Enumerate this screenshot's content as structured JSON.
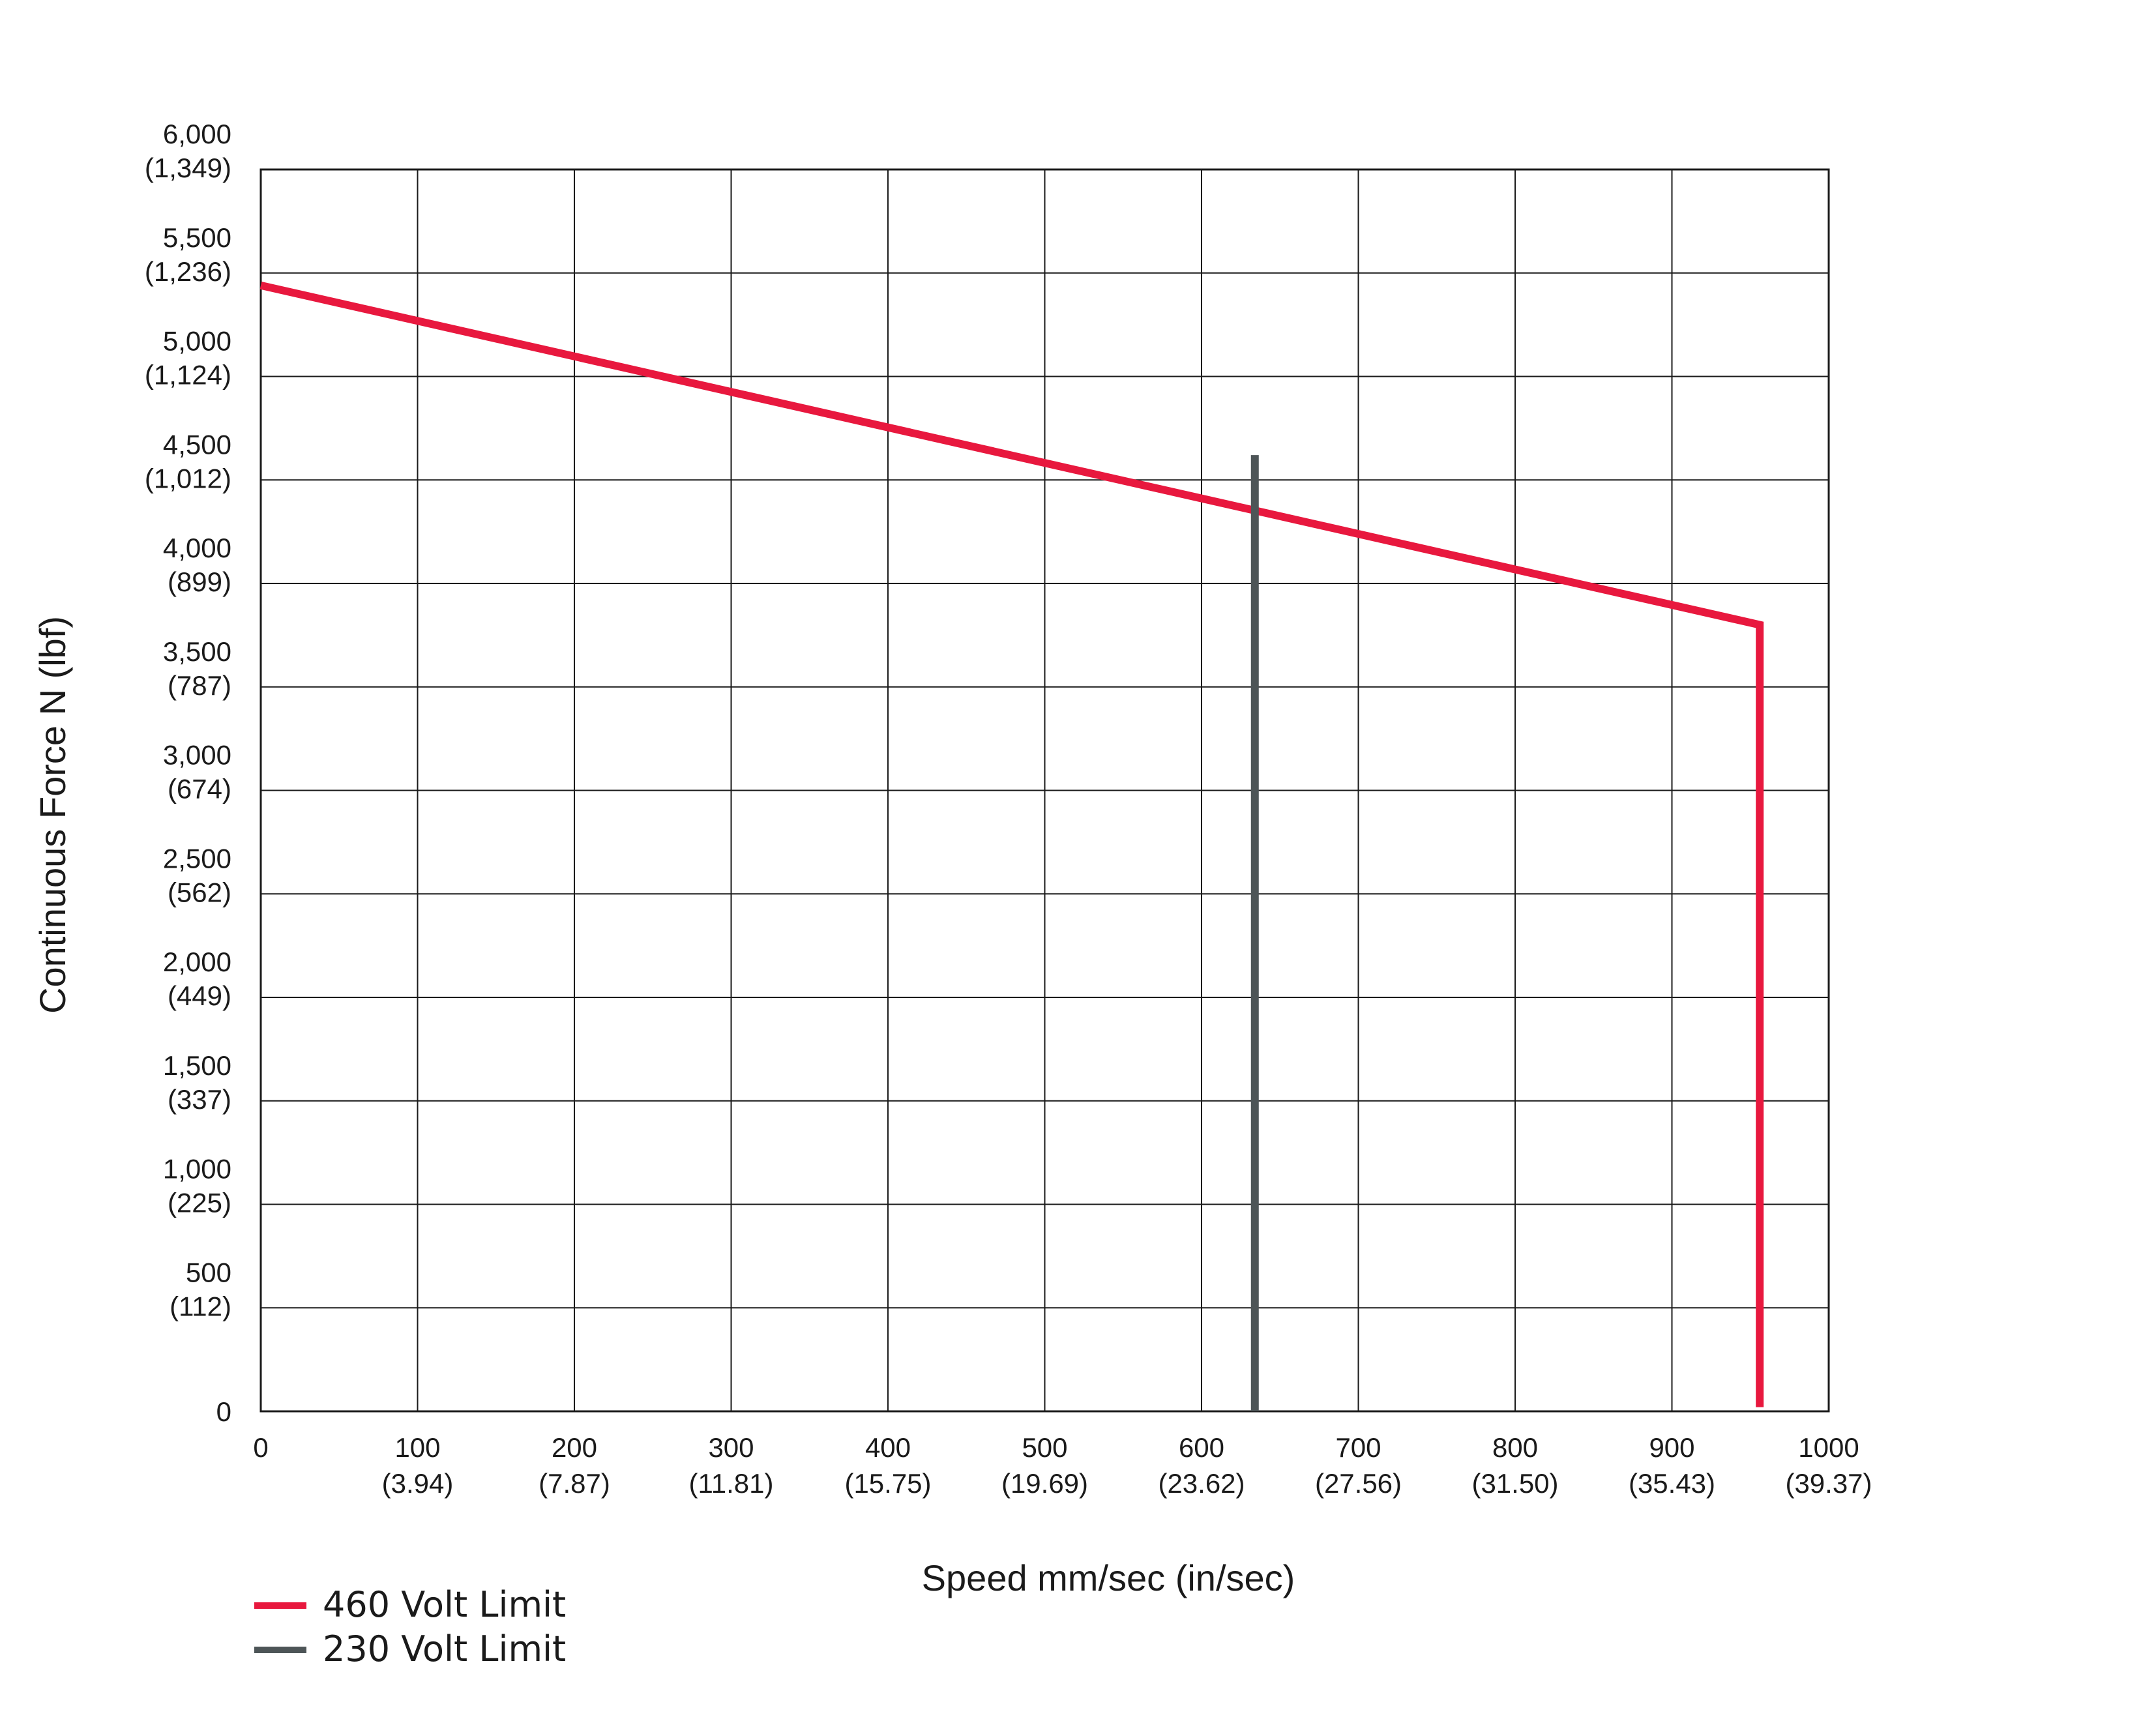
{
  "chart_data": {
    "type": "line",
    "title": "",
    "xlabel": "Speed mm/sec (in/sec)",
    "ylabel": "Continuous Force N (lbf)",
    "xlim": [
      0,
      1000
    ],
    "ylim": [
      0,
      6000
    ],
    "grid": true,
    "x_ticks": [
      {
        "value": 0,
        "label": "0",
        "sub": ""
      },
      {
        "value": 100,
        "label": "100",
        "sub": "(3.94)"
      },
      {
        "value": 200,
        "label": "200",
        "sub": "(7.87)"
      },
      {
        "value": 300,
        "label": "300",
        "sub": "(11.81)"
      },
      {
        "value": 400,
        "label": "400",
        "sub": "(15.75)"
      },
      {
        "value": 500,
        "label": "500",
        "sub": "(19.69)"
      },
      {
        "value": 600,
        "label": "600",
        "sub": "(23.62)"
      },
      {
        "value": 700,
        "label": "700",
        "sub": "(27.56)"
      },
      {
        "value": 800,
        "label": "800",
        "sub": "(31.50)"
      },
      {
        "value": 900,
        "label": "900",
        "sub": "(35.43)"
      },
      {
        "value": 1000,
        "label": "1000",
        "sub": "(39.37)"
      }
    ],
    "y_ticks": [
      {
        "value": 0,
        "label": "0",
        "sub": ""
      },
      {
        "value": 500,
        "label": "500",
        "sub": "(112)"
      },
      {
        "value": 1000,
        "label": "1,000",
        "sub": "(225)"
      },
      {
        "value": 1500,
        "label": "1,500",
        "sub": "(337)"
      },
      {
        "value": 2000,
        "label": "2,000",
        "sub": "(449)"
      },
      {
        "value": 2500,
        "label": "2,500",
        "sub": "(562)"
      },
      {
        "value": 3000,
        "label": "3,000",
        "sub": "(674)"
      },
      {
        "value": 3500,
        "label": "3,500",
        "sub": "(787)"
      },
      {
        "value": 4000,
        "label": "4,000",
        "sub": "(899)"
      },
      {
        "value": 4500,
        "label": "4,500",
        "sub": "(1,012)"
      },
      {
        "value": 5000,
        "label": "5,000",
        "sub": "(1,124)"
      },
      {
        "value": 5500,
        "label": "5,500",
        "sub": "(1,236)"
      },
      {
        "value": 6000,
        "label": "6,000",
        "sub": "(1,349)"
      }
    ],
    "series": [
      {
        "name": "460 Volt Limit",
        "color": "#e8183e",
        "points": [
          [
            0,
            5440
          ],
          [
            956,
            3800
          ],
          [
            956,
            20
          ]
        ]
      },
      {
        "name": "230 Volt Limit",
        "color": "#4d5557",
        "points": [
          [
            634,
            4620
          ],
          [
            634,
            0
          ]
        ]
      }
    ],
    "legend": {
      "position": "bottom-left"
    }
  }
}
